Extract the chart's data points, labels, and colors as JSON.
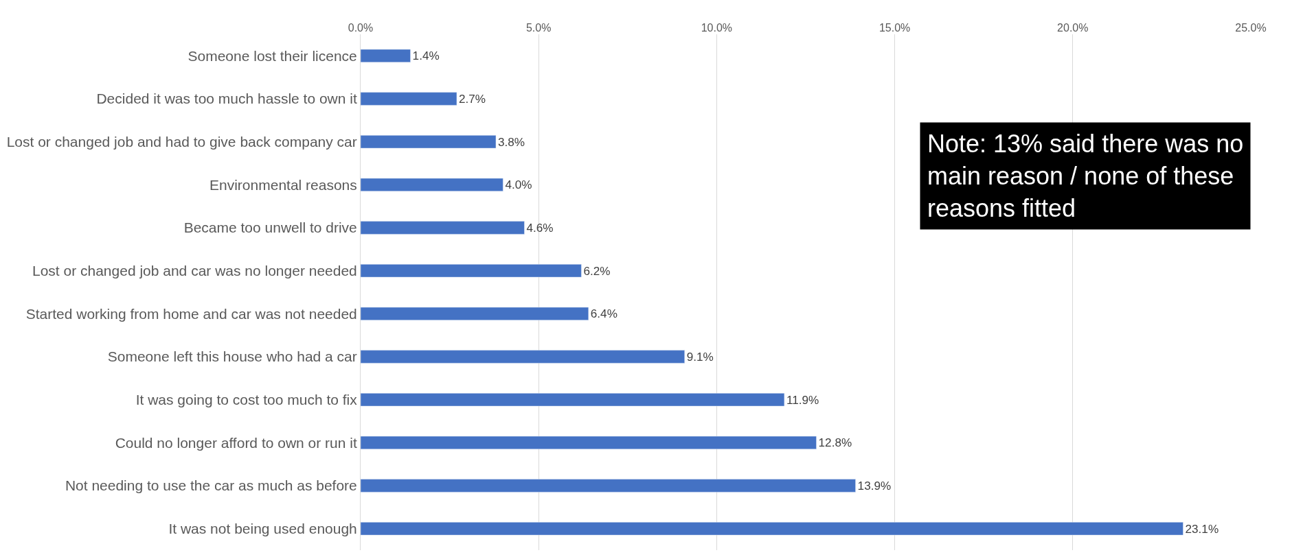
{
  "chart_data": {
    "type": "bar",
    "orientation": "horizontal",
    "categories": [
      "Someone lost their licence",
      "Decided it was too much hassle to own it",
      "Lost or changed job and had to give back company car",
      "Environmental reasons",
      "Became too unwell to drive",
      "Lost or changed job and car was no longer needed",
      "Started working from home and car was not needed",
      "Someone left this house who had a car",
      "It was going to cost too much to fix",
      "Could no longer afford to own or run it",
      "Not needing to use the car as much as before",
      "It was not being used enough"
    ],
    "values": [
      1.4,
      2.7,
      3.8,
      4.0,
      4.6,
      6.2,
      6.4,
      9.1,
      11.9,
      12.8,
      13.9,
      23.1
    ],
    "value_labels": [
      "1.4%",
      "2.7%",
      "3.8%",
      "4.0%",
      "4.6%",
      "6.2%",
      "6.4%",
      "9.1%",
      "11.9%",
      "12.8%",
      "13.9%",
      "23.1%"
    ],
    "color": "#4472c4",
    "xlim": [
      0,
      25
    ],
    "xticks": [
      {
        "value": 0,
        "label": "0.0%"
      },
      {
        "value": 5,
        "label": "5.0%"
      },
      {
        "value": 10,
        "label": "10.0%"
      },
      {
        "value": 15,
        "label": "15.0%"
      },
      {
        "value": 20,
        "label": "20.0%"
      },
      {
        "value": 25,
        "label": "25.0%"
      }
    ],
    "grid": "x",
    "annotations": [
      "Note: 13% said there was no main reason / none of these reasons fitted"
    ]
  }
}
